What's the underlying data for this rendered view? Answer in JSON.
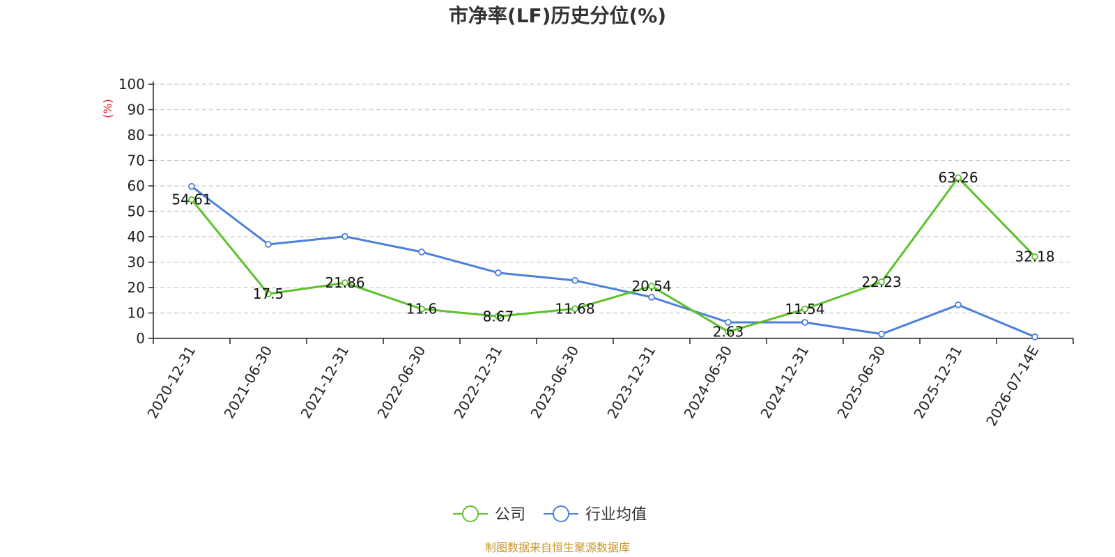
{
  "chart_data": {
    "type": "line",
    "title": "市净率(LF)历史分位(%)",
    "ylabel": "(%)",
    "xlabel": "",
    "ylim": [
      0,
      100
    ],
    "ytick_step": 10,
    "grid": true,
    "categories": [
      "2020-12-31",
      "2021-06-30",
      "2021-12-31",
      "2022-06-30",
      "2022-12-31",
      "2023-06-30",
      "2023-12-31",
      "2024-06-30",
      "2024-12-31",
      "2025-06-30",
      "2025-12-31",
      "2026-07-14E"
    ],
    "series": [
      {
        "name": "公司",
        "color": "#5cc12b",
        "show_labels": true,
        "values": [
          54.61,
          17.5,
          21.86,
          11.6,
          8.67,
          11.68,
          20.54,
          2.63,
          11.54,
          22.23,
          63.26,
          32.18
        ]
      },
      {
        "name": "行业均值",
        "color": "#4d7fdb",
        "show_labels": false,
        "values": [
          59.8,
          37.0,
          40.1,
          34.0,
          25.8,
          22.8,
          16.2,
          6.3,
          6.3,
          1.7,
          13.2,
          0.6
        ]
      }
    ],
    "legend_position": "bottom-center",
    "source": "制图数据来自恒生聚源数据库",
    "colors": {
      "title": "#333333",
      "ylabel": "#e02020",
      "source": "#c8962a",
      "axis": "#222222",
      "grid": "#cccccc"
    }
  }
}
